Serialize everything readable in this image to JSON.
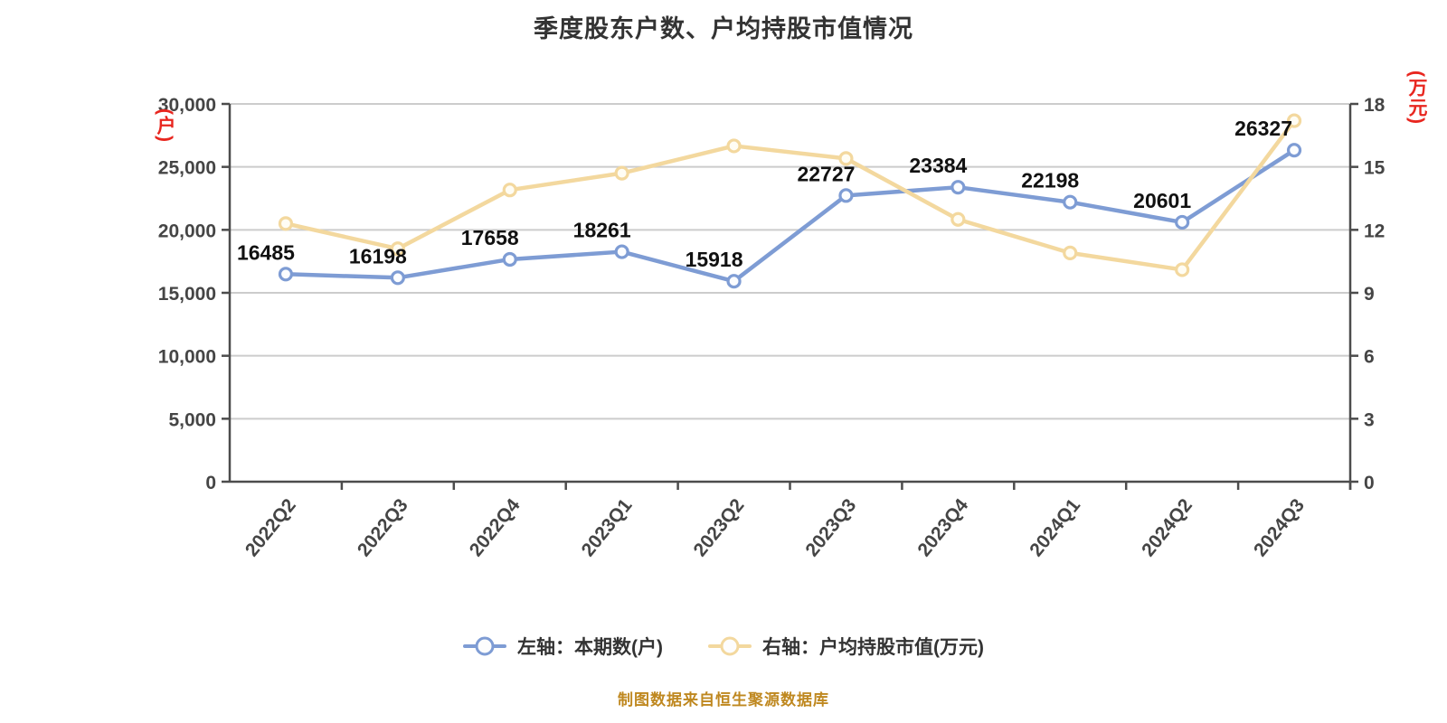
{
  "title": "季度股东户数、户均持股市值情况",
  "source_note": "制图数据来自恒生聚源数据库",
  "colors": {
    "background": "#ffffff",
    "title": "#333333",
    "grid": "#cccccc",
    "axis": "#4c4c4c",
    "tick_text": "#454545",
    "data_label": "#111111",
    "axis_unit": "#e8261f",
    "caption": "#bf8820",
    "legend_text": "#333333",
    "series_blue": "#7e9cd4",
    "series_yellow": "#f3d89e"
  },
  "chart_data": {
    "type": "line",
    "title": "季度股东户数、户均持股市值情况",
    "categories": [
      "2022Q2",
      "2022Q3",
      "2022Q4",
      "2023Q1",
      "2023Q2",
      "2023Q3",
      "2023Q4",
      "2024Q1",
      "2024Q2",
      "2024Q3"
    ],
    "series": [
      {
        "name": "左轴：本期数(户)",
        "axis": "left",
        "color": "#7e9cd4",
        "marker_fill": "#fcfdff",
        "show_labels": true,
        "values": [
          16485,
          16198,
          17658,
          18261,
          15918,
          22727,
          23384,
          22198,
          20601,
          26327
        ]
      },
      {
        "name": "右轴：户均持股市值(万元)",
        "axis": "right",
        "color": "#f3d89e",
        "marker_fill": "#fffdf4",
        "show_labels": false,
        "values": [
          12.3,
          11.1,
          13.9,
          14.7,
          16.0,
          15.4,
          12.5,
          10.9,
          10.1,
          17.2
        ]
      }
    ],
    "left_axis": {
      "unit": "(户)",
      "min": 0,
      "max": 30000,
      "tick_values": [
        0,
        5000,
        10000,
        15000,
        20000,
        25000,
        30000
      ],
      "tick_labels": [
        "0",
        "5,000",
        "10,000",
        "15,000",
        "20,000",
        "25,000",
        "30,000"
      ]
    },
    "right_axis": {
      "unit": "(万元)",
      "min": 0,
      "max": 18,
      "tick_values": [
        0,
        3,
        6,
        9,
        12,
        15,
        18
      ],
      "tick_labels": [
        "0",
        "3",
        "6",
        "9",
        "12",
        "15",
        "18"
      ]
    },
    "grid": true,
    "legend_position": "bottom",
    "x_label_rotation": -51
  }
}
